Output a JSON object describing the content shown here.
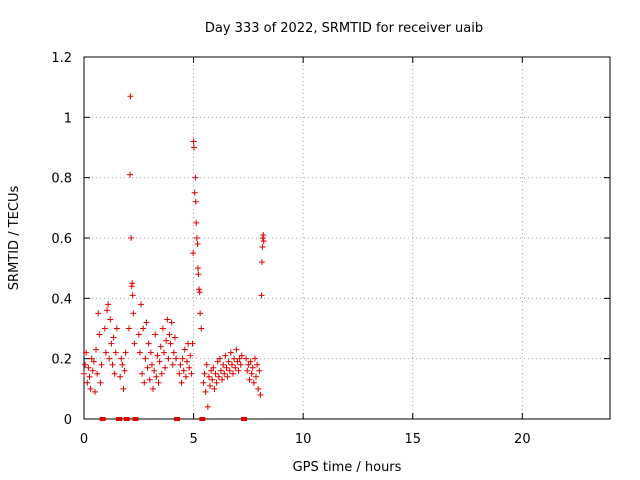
{
  "chart_data": {
    "type": "scatter",
    "title": "Day 333 of 2022, SRMTID for receiver uaib",
    "xlabel": "GPS time / hours",
    "ylabel": "SRMTID / TECUs",
    "xlim": [
      0,
      24
    ],
    "ylim": [
      0,
      1.2
    ],
    "xticks": [
      0,
      5,
      10,
      15,
      20
    ],
    "xtick_labels": [
      "0",
      "5",
      "10",
      "15",
      "20"
    ],
    "yticks": [
      0,
      0.2,
      0.4,
      0.6,
      0.8,
      1.0,
      1.2
    ],
    "ytick_labels": [
      "0",
      "0.2",
      "0.4",
      "0.6",
      "0.8",
      "1",
      "1.2"
    ],
    "grid": true,
    "marker": "+",
    "color": "#e00000",
    "zero_markers_x": [
      0.85,
      1.6,
      1.95,
      2.35,
      4.25,
      5.4,
      7.3
    ],
    "series": [
      {
        "name": "uaib",
        "x": [
          0.0,
          0.05,
          0.1,
          0.15,
          0.2,
          0.25,
          0.3,
          0.35,
          0.4,
          0.45,
          0.5,
          0.55,
          0.6,
          0.65,
          0.7,
          0.75,
          0.8,
          0.95,
          1.0,
          1.05,
          1.1,
          1.15,
          1.2,
          1.25,
          1.3,
          1.35,
          1.4,
          1.45,
          1.5,
          1.65,
          1.7,
          1.75,
          1.8,
          1.85,
          1.9,
          2.05,
          2.1,
          2.12,
          2.15,
          2.18,
          2.2,
          2.22,
          2.25,
          2.3,
          2.5,
          2.55,
          2.6,
          2.65,
          2.7,
          2.75,
          2.8,
          2.85,
          2.9,
          2.95,
          3.0,
          3.05,
          3.1,
          3.15,
          3.2,
          3.25,
          3.3,
          3.35,
          3.4,
          3.45,
          3.5,
          3.55,
          3.6,
          3.65,
          3.7,
          3.75,
          3.8,
          3.85,
          3.9,
          3.95,
          4.0,
          4.05,
          4.1,
          4.15,
          4.2,
          4.35,
          4.4,
          4.45,
          4.5,
          4.55,
          4.6,
          4.65,
          4.7,
          4.75,
          4.8,
          4.85,
          4.9,
          4.95,
          4.98,
          5.0,
          5.02,
          5.05,
          5.08,
          5.1,
          5.12,
          5.15,
          5.18,
          5.2,
          5.22,
          5.25,
          5.28,
          5.3,
          5.35,
          5.45,
          5.5,
          5.55,
          5.6,
          5.65,
          5.7,
          5.75,
          5.8,
          5.85,
          5.9,
          5.95,
          6.0,
          6.05,
          6.1,
          6.15,
          6.2,
          6.25,
          6.3,
          6.35,
          6.4,
          6.45,
          6.5,
          6.55,
          6.6,
          6.65,
          6.7,
          6.75,
          6.8,
          6.85,
          6.9,
          6.95,
          7.0,
          7.05,
          7.1,
          7.15,
          7.2,
          7.4,
          7.45,
          7.5,
          7.55,
          7.6,
          7.65,
          7.7,
          7.75,
          7.8,
          7.85,
          7.9,
          7.95,
          8.0,
          8.05,
          8.1,
          8.12,
          8.14,
          8.16,
          8.18,
          8.2
        ],
        "y": [
          0.15,
          0.18,
          0.22,
          0.12,
          0.17,
          0.14,
          0.1,
          0.2,
          0.16,
          0.19,
          0.09,
          0.23,
          0.15,
          0.35,
          0.28,
          0.12,
          0.18,
          0.3,
          0.22,
          0.36,
          0.38,
          0.2,
          0.33,
          0.25,
          0.18,
          0.27,
          0.15,
          0.22,
          0.3,
          0.14,
          0.2,
          0.18,
          0.1,
          0.16,
          0.22,
          0.3,
          0.81,
          1.07,
          0.6,
          0.44,
          0.45,
          0.41,
          0.35,
          0.25,
          0.28,
          0.22,
          0.38,
          0.15,
          0.3,
          0.12,
          0.2,
          0.32,
          0.17,
          0.25,
          0.13,
          0.22,
          0.18,
          0.1,
          0.16,
          0.28,
          0.14,
          0.21,
          0.12,
          0.19,
          0.24,
          0.15,
          0.3,
          0.22,
          0.17,
          0.26,
          0.33,
          0.2,
          0.28,
          0.25,
          0.32,
          0.18,
          0.22,
          0.27,
          0.2,
          0.15,
          0.18,
          0.12,
          0.2,
          0.16,
          0.23,
          0.14,
          0.19,
          0.25,
          0.17,
          0.21,
          0.15,
          0.25,
          0.55,
          0.92,
          0.9,
          0.75,
          0.8,
          0.72,
          0.65,
          0.6,
          0.58,
          0.5,
          0.48,
          0.43,
          0.42,
          0.35,
          0.3,
          0.12,
          0.15,
          0.09,
          0.18,
          0.04,
          0.14,
          0.11,
          0.16,
          0.13,
          0.17,
          0.1,
          0.15,
          0.12,
          0.19,
          0.14,
          0.2,
          0.16,
          0.13,
          0.18,
          0.15,
          0.21,
          0.17,
          0.14,
          0.19,
          0.16,
          0.22,
          0.18,
          0.15,
          0.2,
          0.17,
          0.23,
          0.19,
          0.16,
          0.2,
          0.18,
          0.21,
          0.2,
          0.16,
          0.18,
          0.13,
          0.19,
          0.15,
          0.17,
          0.12,
          0.2,
          0.14,
          0.18,
          0.1,
          0.16,
          0.08,
          0.41,
          0.52,
          0.57,
          0.6,
          0.61,
          0.59
        ]
      }
    ]
  }
}
